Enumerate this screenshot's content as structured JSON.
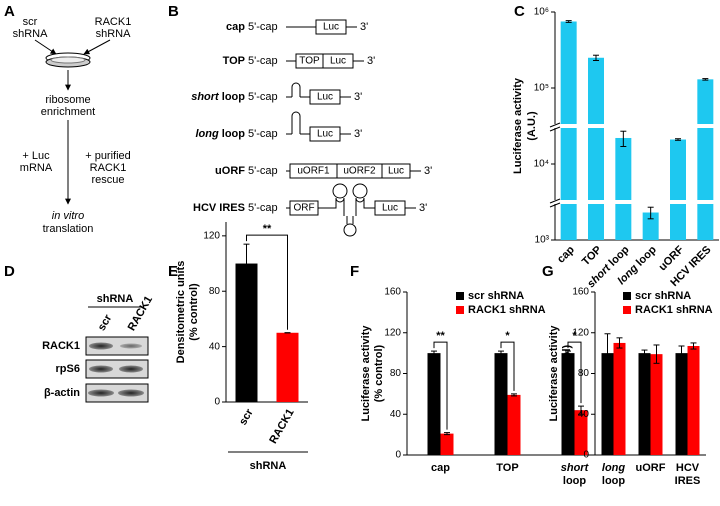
{
  "panel_labels": [
    "A",
    "B",
    "C",
    "D",
    "E",
    "F",
    "G"
  ],
  "panel_a": {
    "left": [
      "scr",
      "shRNA"
    ],
    "right": [
      "RACK1",
      "shRNA"
    ],
    "step1": [
      "ribosome",
      "enrichment"
    ],
    "add_left": [
      "+ Luc",
      "mRNA"
    ],
    "add_right": [
      "+ purified",
      "RACK1",
      "rescue"
    ],
    "result": [
      "in vitro",
      "translation"
    ]
  },
  "panel_b": {
    "constructs": [
      {
        "name": [
          "cap"
        ],
        "cap": "5'-cap",
        "end": "3'",
        "boxes": [
          "Luc"
        ]
      },
      {
        "name": [
          "TOP"
        ],
        "cap": "5'-cap",
        "end": "3'",
        "boxes": [
          "TOP",
          "Luc"
        ]
      },
      {
        "name": [
          "short",
          " loop"
        ],
        "cap": "5'-cap",
        "end": "3'",
        "boxes": [
          "Luc"
        ]
      },
      {
        "name": [
          "long",
          " loop"
        ],
        "cap": "5'-cap",
        "end": "3'",
        "boxes": [
          "Luc"
        ]
      },
      {
        "name": [
          "uORF"
        ],
        "cap": "5'-cap",
        "end": "3'",
        "boxes": [
          "uORF1",
          "uORF2",
          "Luc"
        ]
      },
      {
        "name": [
          "HCV IRES"
        ],
        "cap": "5'-cap",
        "end": "3'",
        "boxes": [
          "ORF",
          "Luc"
        ]
      }
    ]
  },
  "panel_d": {
    "header": "shRNA",
    "lanes": [
      "scr",
      "RACK1"
    ],
    "rows": [
      "RACK1",
      "rpS6",
      "β-actin"
    ]
  },
  "chart_data": [
    {
      "type": "bar",
      "ylabel": [
        "Luciferase activity",
        "(A.U.)"
      ],
      "log": true,
      "categories": [
        [
          "cap"
        ],
        [
          "TOP"
        ],
        [
          "short",
          "loop"
        ],
        [
          "long",
          "loop"
        ],
        [
          "uORF"
        ],
        [
          "HCV",
          "IRES"
        ]
      ],
      "italic": [
        false,
        false,
        true,
        true,
        false,
        false
      ],
      "values": [
        750000,
        250000,
        22000,
        2300,
        21000,
        130000
      ],
      "errors": [
        20000,
        20000,
        5000,
        400,
        500,
        3000
      ],
      "color": "#1ec8f0",
      "ylim": [
        1000,
        1000000
      ],
      "yticks": [
        {
          "value": 1000,
          "label": "10³"
        },
        {
          "value": 10000,
          "label": "10⁴"
        },
        {
          "value": 100000,
          "label": "10⁵"
        },
        {
          "value": 1000000,
          "label": "10⁶"
        }
      ]
    },
    {
      "type": "bar",
      "ylabel": [
        "Densitometric units",
        "(% control)"
      ],
      "xlabel": "shRNA",
      "categories": [
        [
          "scr"
        ],
        [
          "RACK1"
        ]
      ],
      "italic": [
        false,
        false
      ],
      "values": [
        100,
        50
      ],
      "errors": [
        14,
        0
      ],
      "colors": [
        "#000000",
        "#ff0000"
      ],
      "ylim": [
        0,
        130
      ],
      "yticks": [
        0,
        40,
        80,
        120
      ],
      "significance": [
        "**"
      ]
    },
    {
      "type": "bar",
      "ylabel": [
        "Luciferase activity",
        "(% control)"
      ],
      "categories": [
        [
          "cap"
        ],
        [
          "TOP"
        ],
        [
          "short",
          "loop"
        ]
      ],
      "italic": [
        false,
        false,
        true
      ],
      "series": [
        {
          "name": "scr shRNA",
          "color": "#000000",
          "values": [
            100,
            100,
            100
          ],
          "errors": [
            2,
            2,
            2
          ]
        },
        {
          "name": "RACK1 shRNA",
          "color": "#ff0000",
          "values": [
            21,
            59,
            44
          ],
          "errors": [
            1,
            1,
            4
          ]
        }
      ],
      "ylim": [
        0,
        160
      ],
      "yticks": [
        0,
        40,
        80,
        120,
        160
      ],
      "significance": [
        "**",
        "*",
        "*"
      ],
      "legend": "upper"
    },
    {
      "type": "bar",
      "ylabel": [
        "Luciferase activity",
        "(% control)"
      ],
      "categories": [
        [
          "long",
          "loop"
        ],
        [
          "uORF"
        ],
        [
          "HCV",
          "IRES"
        ]
      ],
      "italic": [
        true,
        false,
        false
      ],
      "series": [
        {
          "name": "scr shRNA",
          "color": "#000000",
          "values": [
            100,
            100,
            100
          ],
          "errors": [
            19,
            3,
            7
          ]
        },
        {
          "name": "RACK1 shRNA",
          "color": "#ff0000",
          "values": [
            110,
            99,
            107
          ],
          "errors": [
            5,
            9,
            3
          ]
        }
      ],
      "ylim": [
        0,
        160
      ],
      "yticks": [
        0,
        40,
        80,
        120,
        160
      ],
      "legend": "upper"
    }
  ]
}
